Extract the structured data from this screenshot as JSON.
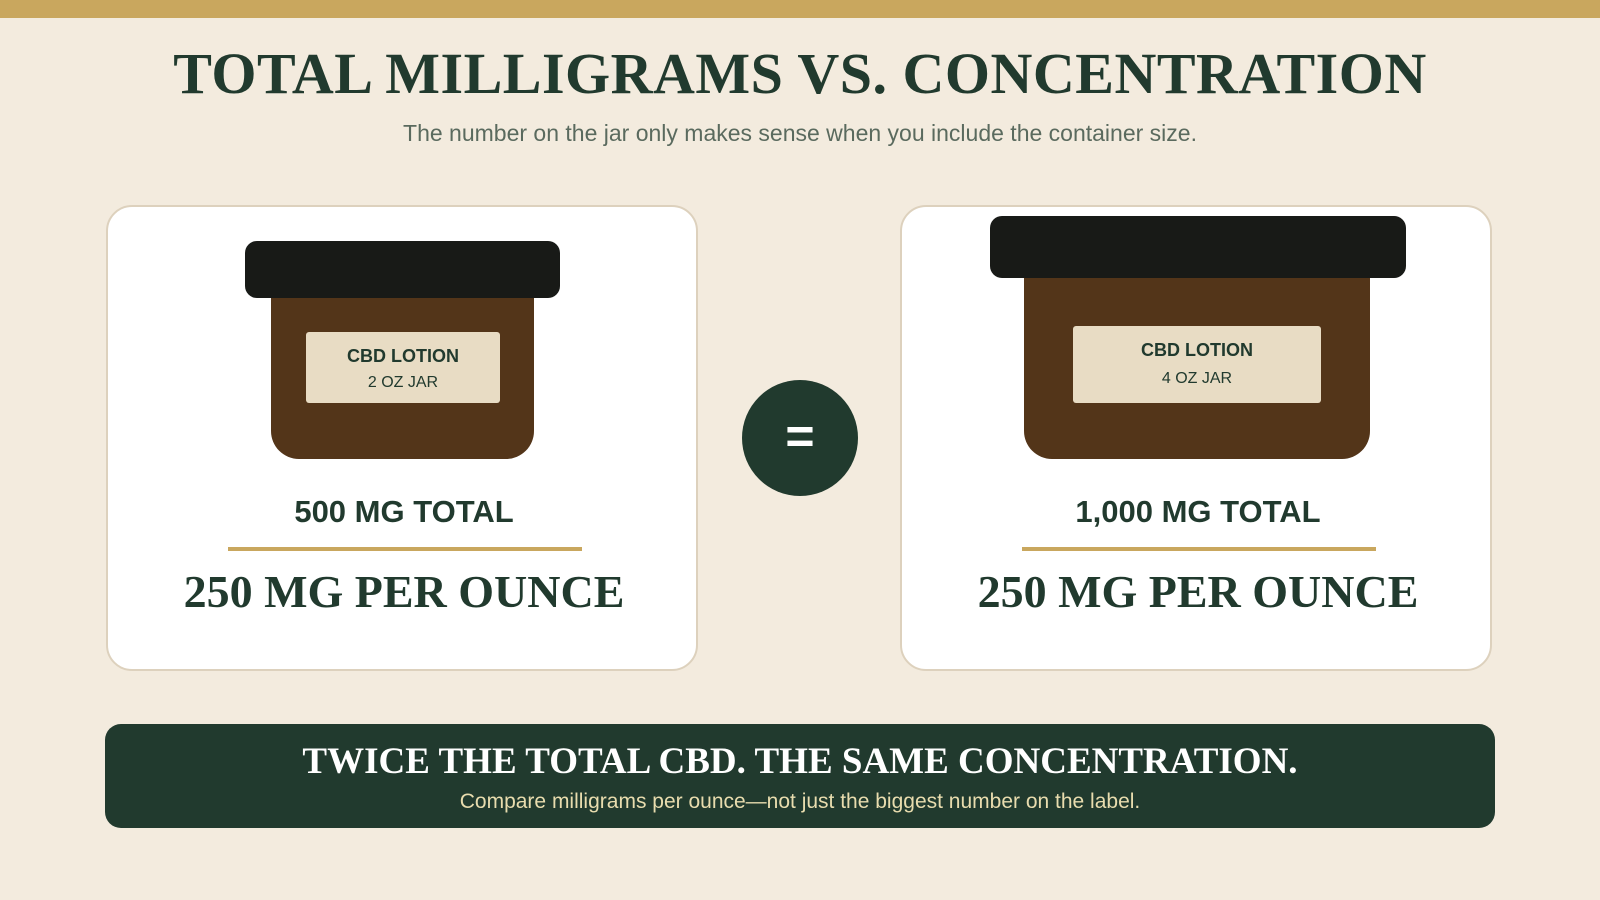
{
  "header": {
    "title": "TOTAL MILLIGRAMS VS. CONCENTRATION",
    "subtitle": "The number on the jar only makes sense when you include the container size."
  },
  "cards": [
    {
      "label_title": "CBD LOTION",
      "label_size": "2 OZ JAR",
      "total": "500 MG TOTAL",
      "per_ounce": "250 MG PER OUNCE"
    },
    {
      "label_title": "CBD LOTION",
      "label_size": "4 OZ JAR",
      "total": "1,000 MG TOTAL",
      "per_ounce": "250 MG PER OUNCE"
    }
  ],
  "equals_symbol": "=",
  "banner": {
    "title": "TWICE THE TOTAL CBD. THE SAME CONCENTRATION.",
    "subtitle": "Compare milligrams per ounce—not just the biggest number on the label."
  }
}
